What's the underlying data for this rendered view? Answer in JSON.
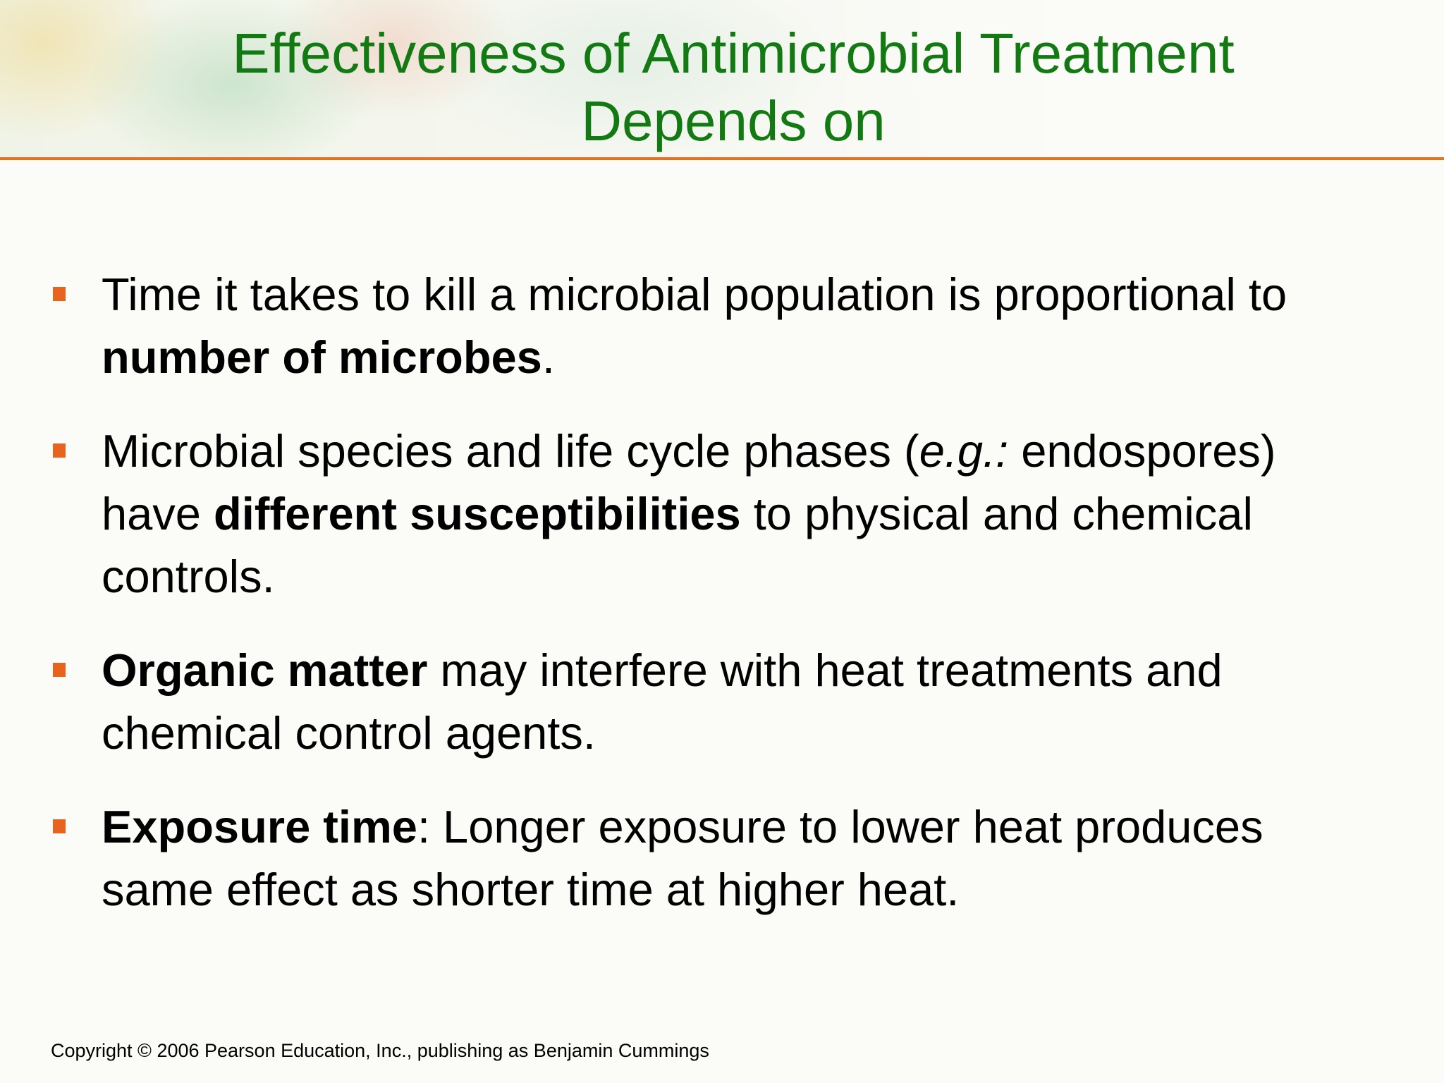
{
  "header": {
    "title": "Effectiveness of Antimicrobial Treatment Depends on"
  },
  "bullets": [
    [
      "Time it takes to kill a microbial population is proportional to ",
      "number of microbes",
      "."
    ],
    [
      "Microbial species and life cycle phases (",
      "e.g.:",
      " endospores) have ",
      "different susceptibilities",
      " to physical and chemical controls."
    ],
    [
      "Organic matter",
      " may interfere with heat treatments and chemical control agents."
    ],
    [
      "Exposure time",
      ":  Longer exposure to lower heat produces same effect as shorter time at higher heat."
    ]
  ],
  "footer": {
    "copyright": "Copyright © 2006 Pearson Education, Inc., publishing as Benjamin Cummings"
  }
}
